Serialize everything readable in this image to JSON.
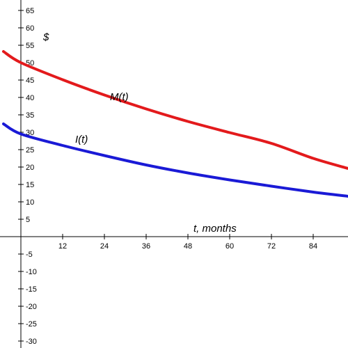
{
  "chart_data": {
    "type": "line",
    "title": "",
    "xlabel": "t, months",
    "ylabel": "$",
    "xlim": [
      -5,
      94
    ],
    "ylim": [
      -32,
      67
    ],
    "x_ticks": [
      12,
      24,
      36,
      48,
      60,
      72,
      84
    ],
    "y_ticks": [
      -30,
      -25,
      -20,
      -15,
      -10,
      -5,
      5,
      10,
      15,
      20,
      25,
      30,
      35,
      40,
      45,
      50,
      55,
      60,
      65
    ],
    "grid": false,
    "legend": "none",
    "series": [
      {
        "name": "M(t)",
        "color": "#e31a1c",
        "x": [
          -5,
          0,
          12,
          24,
          36,
          48,
          60,
          72,
          84,
          94
        ],
        "y": [
          53.2,
          50.0,
          45.1,
          40.7,
          36.7,
          33.1,
          29.9,
          26.8,
          22.5,
          19.6
        ]
      },
      {
        "name": "I(t)",
        "color": "#1a1ad6",
        "x": [
          -5,
          0,
          12,
          24,
          36,
          48,
          60,
          72,
          84,
          94
        ],
        "y": [
          32.4,
          29.5,
          26.2,
          23.3,
          20.6,
          18.3,
          16.3,
          14.5,
          12.8,
          11.6
        ]
      }
    ]
  }
}
